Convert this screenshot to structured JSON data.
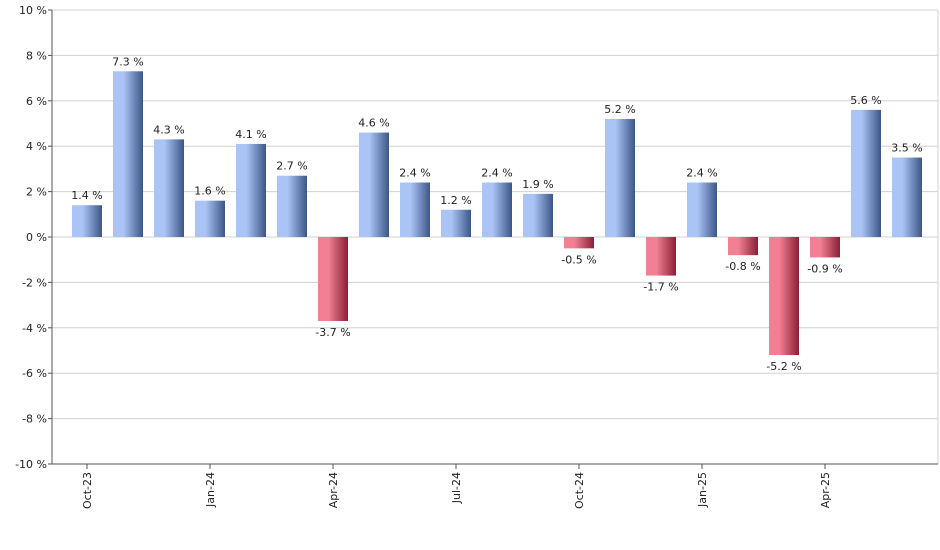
{
  "chart_data": {
    "type": "bar",
    "categories": [
      "Oct-23",
      "Nov-23",
      "Dec-23",
      "Jan-24",
      "Feb-24",
      "Mar-24",
      "Apr-24",
      "May-24",
      "Jun-24",
      "Jul-24",
      "Aug-24",
      "Sep-24",
      "Oct-24",
      "Nov-24",
      "Dec-24",
      "Jan-25",
      "Feb-25",
      "Mar-25",
      "Apr-25",
      "May-25",
      "Jun-25"
    ],
    "values": [
      1.4,
      7.3,
      4.3,
      1.6,
      4.1,
      2.7,
      -3.7,
      4.6,
      2.4,
      1.2,
      2.4,
      1.9,
      -0.5,
      5.2,
      -1.7,
      2.4,
      -0.8,
      -5.2,
      -0.9,
      5.6,
      3.5
    ],
    "data_labels": [
      "1.4 %",
      "7.3 %",
      "4.3 %",
      "1.6 %",
      "4.1 %",
      "2.7 %",
      "-3.7 %",
      "4.6 %",
      "2.4 %",
      "1.2 %",
      "2.4 %",
      "1.9 %",
      "-0.5 %",
      "5.2 %",
      "-1.7 %",
      "2.4 %",
      "-0.8 %",
      "-5.2 %",
      "-0.9 %",
      "5.6 %",
      "3.5 %"
    ],
    "x_tick_labels": [
      {
        "index": 0,
        "label": "Oct-23"
      },
      {
        "index": 3,
        "label": "Jan-24"
      },
      {
        "index": 6,
        "label": "Apr-24"
      },
      {
        "index": 9,
        "label": "Jul-24"
      },
      {
        "index": 12,
        "label": "Oct-24"
      },
      {
        "index": 15,
        "label": "Jan-25"
      },
      {
        "index": 18,
        "label": "Apr-25"
      }
    ],
    "y_ticks": [
      10,
      8,
      6,
      4,
      2,
      0,
      -2,
      -4,
      -6,
      -8,
      -10
    ],
    "y_tick_labels": [
      "10 %",
      "8 %",
      "6 %",
      "4 %",
      "2 %",
      "0 %",
      "-2 %",
      "-4 %",
      "-6 %",
      "-8 %",
      "-10 %"
    ],
    "ylim": [
      -10,
      10
    ],
    "grid": true,
    "title": "",
    "xlabel": "",
    "ylabel": "",
    "colors": {
      "positive_light": "#aac4f5",
      "positive_dark": "#3d5688",
      "negative_light": "#f27f93",
      "negative_dark": "#8a1f35",
      "grid": "#d0d0d0",
      "axis": "#555555",
      "text": "#222222"
    }
  }
}
